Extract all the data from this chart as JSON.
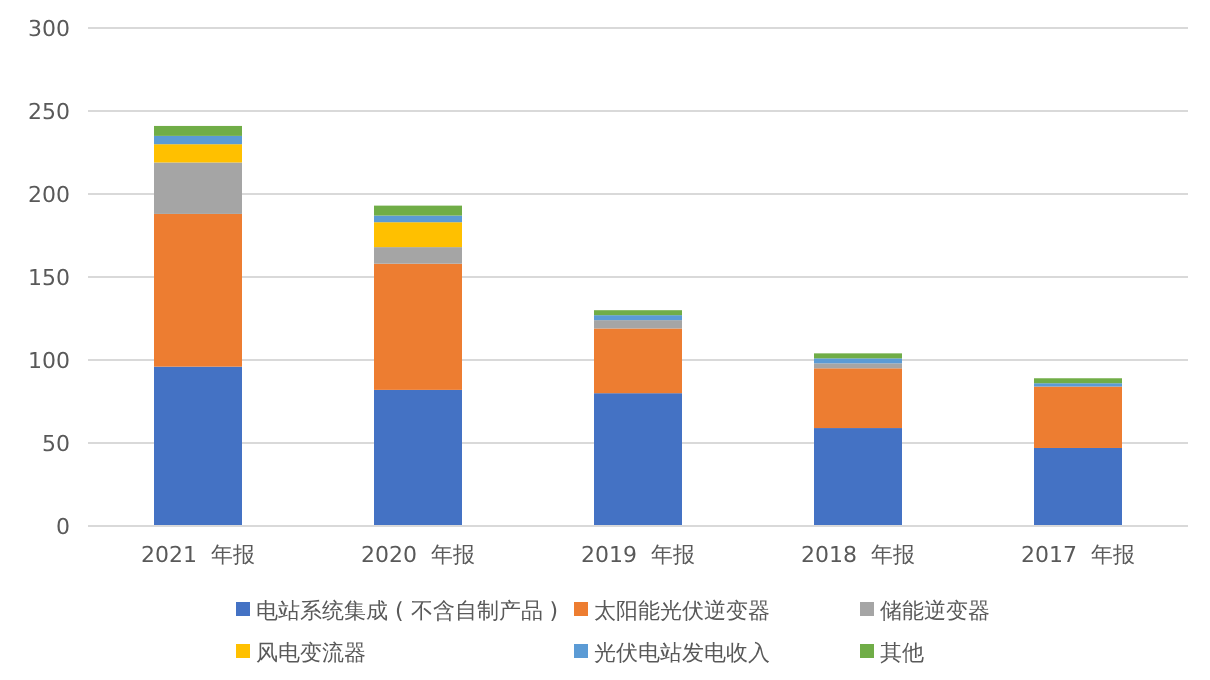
{
  "chart_data": {
    "type": "bar",
    "stacked": true,
    "categories": [
      "2021  年报",
      "2020  年报",
      "2019  年报",
      "2018  年报",
      "2017  年报"
    ],
    "series": [
      {
        "name": "电站系统集成 ( 不含自制产品 )",
        "color": "#4472c4",
        "values": [
          96,
          82,
          80,
          59,
          47
        ]
      },
      {
        "name": "太阳能光伏逆变器",
        "color": "#ed7d31",
        "values": [
          92,
          76,
          39,
          36,
          37
        ]
      },
      {
        "name": "储能逆变器",
        "color": "#a5a5a5",
        "values": [
          31,
          10,
          5,
          3,
          0
        ]
      },
      {
        "name": "风电变流器",
        "color": "#ffc000",
        "values": [
          11,
          15,
          0,
          0,
          0
        ]
      },
      {
        "name": "光伏电站发电收入",
        "color": "#5b9bd5",
        "values": [
          5,
          4,
          3,
          3,
          2
        ]
      },
      {
        "name": "其他",
        "color": "#70ad47",
        "values": [
          6,
          6,
          3,
          3,
          3
        ]
      }
    ],
    "ylim": [
      0,
      300
    ],
    "yticks": [
      0,
      50,
      100,
      150,
      200,
      250,
      300
    ],
    "grid": "y",
    "legend": "bottom"
  }
}
